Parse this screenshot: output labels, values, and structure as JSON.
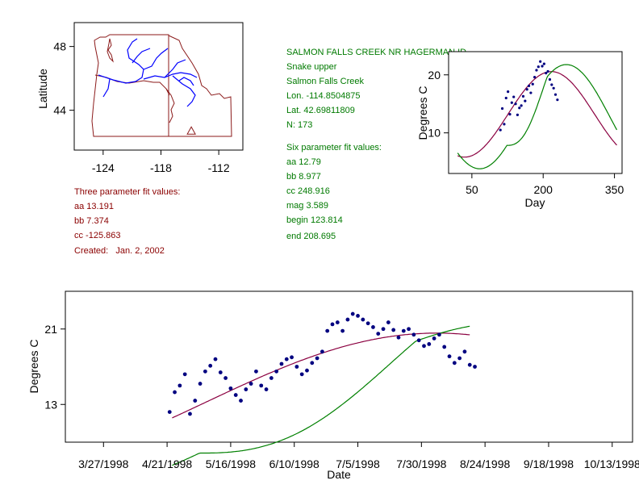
{
  "colors": {
    "map_line": "#8b1a1a",
    "rivers": "#0000ff",
    "text_green": "#007a00",
    "text_red": "#8b0000",
    "points": "#000080",
    "fit_six": "#008000",
    "fit_three": "#8b0040"
  },
  "station": {
    "name": "SALMON FALLS CREEK NR HAGERMAN ID",
    "region": "Snake upper",
    "stream": "Salmon Falls Creek",
    "lon": "Lon. -114.8504875",
    "lat": "Lat. 42.69811809",
    "n": "N: 173"
  },
  "six_fit": {
    "title": "Six parameter fit values:",
    "aa": "aa 12.79",
    "bb": "bb 8.977",
    "cc": "cc 248.916",
    "mag": "mag 3.589",
    "begin": "begin 123.814",
    "end": "end 208.695"
  },
  "three_fit": {
    "title": "Three parameter fit values:",
    "aa": "aa 13.191",
    "bb": "bb 7.374",
    "cc": "cc -125.863",
    "created": "Created:   Jan. 2, 2002"
  },
  "chart_data": [
    {
      "type": "map",
      "ylabel": "Latitude",
      "x_ticks": [
        "-124",
        "-118",
        "-112"
      ],
      "y_ticks": [
        "48",
        "44"
      ],
      "xlim": [
        -127,
        -109.5
      ],
      "ylim": [
        41.5,
        49.5
      ],
      "site": {
        "lon": -114.85,
        "lat": 42.7
      }
    },
    {
      "type": "scatter",
      "xlabel": "Day",
      "ylabel": "Degrees C",
      "x_ticks": [
        "50",
        "200",
        "350"
      ],
      "y_ticks": [
        "20",
        "10"
      ],
      "xlim": [
        1,
        366
      ],
      "ylim": [
        3,
        24
      ],
      "series": [
        {
          "kind": "points",
          "x": [
            110,
            114,
            118,
            122,
            126,
            130,
            134,
            138,
            142,
            146,
            150,
            154,
            158,
            162,
            166,
            170,
            174,
            178,
            182,
            186,
            190,
            194,
            198,
            202,
            206,
            210,
            214,
            218,
            222,
            226,
            230
          ],
          "y": [
            10.5,
            14.2,
            11.5,
            16.0,
            17.1,
            13.2,
            15.2,
            16.2,
            15.0,
            13.1,
            14.3,
            14.7,
            16.3,
            15.5,
            17.5,
            18.1,
            16.9,
            18.4,
            19.6,
            20.8,
            21.4,
            22.3,
            21.5,
            21.9,
            20.3,
            20.6,
            19.2,
            18.3,
            17.7,
            16.6,
            15.7
          ]
        },
        {
          "kind": "fit-three"
        },
        {
          "kind": "fit-six"
        }
      ]
    },
    {
      "type": "scatter",
      "xlabel": "Date",
      "ylabel": "Degrees C",
      "x_ticks": [
        "3/27/1998",
        "4/21/1998",
        "5/16/1998",
        "6/10/1998",
        "7/5/1998",
        "7/30/1998",
        "8/24/1998",
        "9/18/1998",
        "10/13/1998"
      ],
      "y_ticks": [
        "21",
        "13"
      ],
      "xlim": [
        71,
        294
      ],
      "ylim": [
        9,
        25
      ],
      "series": [
        {
          "kind": "points",
          "x": [
            112,
            114,
            116,
            118,
            120,
            122,
            124,
            126,
            128,
            130,
            132,
            134,
            136,
            138,
            140,
            142,
            144,
            146,
            148,
            150,
            152,
            154,
            156,
            158,
            160,
            162,
            164,
            166,
            168,
            170,
            172,
            174,
            176,
            178,
            180,
            182,
            184,
            186,
            188,
            190,
            192,
            194,
            196,
            198,
            200,
            202,
            204,
            206,
            208,
            210,
            212,
            214,
            216,
            218,
            220,
            222,
            224,
            226,
            228,
            230,
            232
          ],
          "y": [
            12.2,
            14.3,
            15.0,
            16.2,
            12.0,
            13.4,
            15.2,
            16.5,
            17.1,
            17.8,
            16.4,
            15.8,
            14.7,
            14.0,
            13.4,
            14.6,
            15.2,
            16.5,
            15.0,
            14.6,
            15.8,
            16.5,
            17.3,
            17.8,
            18.0,
            17.0,
            16.2,
            16.6,
            17.4,
            17.9,
            18.6,
            20.8,
            21.5,
            21.7,
            20.8,
            22.0,
            22.6,
            22.4,
            22.0,
            21.6,
            21.2,
            20.5,
            21.0,
            21.7,
            20.9,
            20.1,
            20.8,
            21.0,
            20.4,
            19.8,
            19.2,
            19.4,
            20.0,
            20.4,
            19.1,
            18.1,
            17.4,
            17.9,
            18.6,
            17.2,
            17.0
          ]
        },
        {
          "kind": "fit-three"
        },
        {
          "kind": "fit-six"
        }
      ]
    }
  ]
}
